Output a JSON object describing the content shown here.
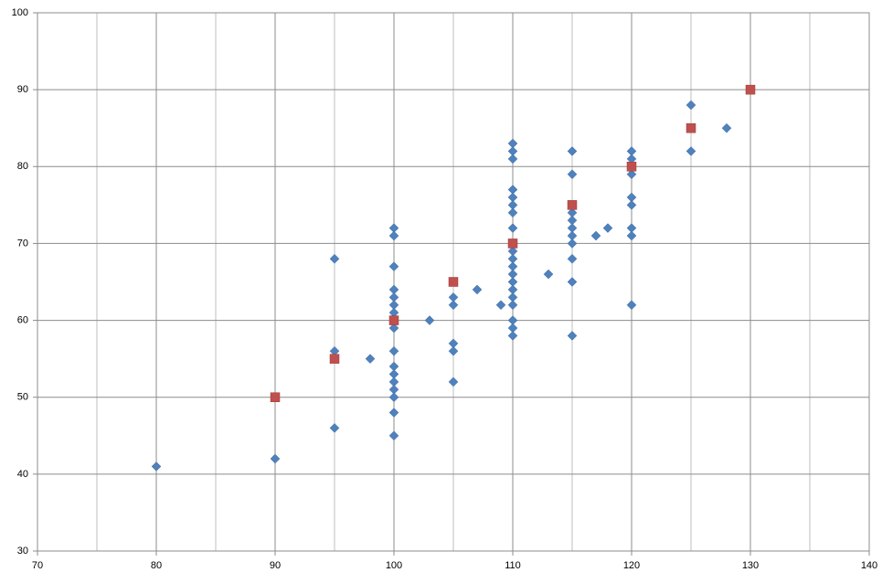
{
  "chart_data": {
    "type": "scatter",
    "xlim": [
      70,
      140
    ],
    "xticks": [
      70,
      80,
      90,
      100,
      110,
      120,
      130,
      140
    ],
    "xminor": [
      75,
      85,
      95,
      105,
      115,
      125,
      135
    ],
    "ylim": [
      30,
      100
    ],
    "yticks": [
      30,
      40,
      50,
      60,
      70,
      80,
      90,
      100
    ],
    "grid": true,
    "series": [
      {
        "marker": "diamond",
        "color": "#4f81bd",
        "x": [
          80,
          90,
          95,
          95,
          95,
          98,
          100,
          100,
          100,
          100,
          100,
          100,
          100,
          100,
          100,
          100,
          100,
          100,
          100,
          100,
          100,
          100,
          100,
          103,
          105,
          105,
          105,
          105,
          105,
          107,
          109,
          110,
          110,
          110,
          110,
          110,
          110,
          110,
          110,
          110,
          110,
          110,
          110,
          110,
          110,
          110,
          110,
          110,
          110,
          110,
          113,
          115,
          115,
          115,
          115,
          115,
          115,
          115,
          115,
          115,
          115,
          117,
          118,
          120,
          120,
          120,
          120,
          120,
          120,
          120,
          120,
          125,
          125,
          128
        ],
        "values": [
          41,
          42,
          68,
          56,
          46,
          55,
          72,
          71,
          67,
          64,
          63,
          62,
          61,
          60,
          59,
          56,
          54,
          53,
          52,
          51,
          50,
          48,
          45,
          60,
          63,
          62,
          57,
          56,
          52,
          64,
          62,
          83,
          82,
          81,
          77,
          76,
          75,
          74,
          72,
          69,
          68,
          67,
          66,
          65,
          64,
          63,
          62,
          60,
          59,
          58,
          66,
          82,
          79,
          74,
          73,
          72,
          71,
          70,
          68,
          65,
          58,
          71,
          72,
          82,
          81,
          79,
          76,
          75,
          72,
          71,
          62,
          88,
          82,
          85
        ]
      },
      {
        "marker": "square",
        "color": "#c0504d",
        "x": [
          90,
          95,
          100,
          105,
          110,
          115,
          120,
          125,
          130
        ],
        "values": [
          50,
          55,
          60,
          65,
          70,
          75,
          80,
          85,
          90
        ]
      }
    ]
  }
}
